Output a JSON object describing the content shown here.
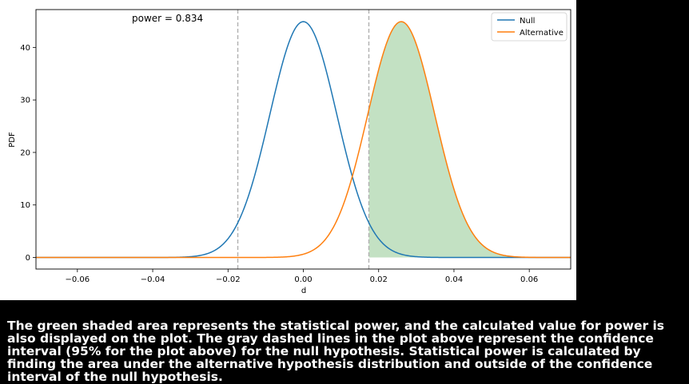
{
  "chart_data": {
    "type": "line",
    "title": "",
    "annotation": "power = 0.834",
    "xlabel": "d",
    "ylabel": "PDF",
    "xlim": [
      -0.071,
      0.071
    ],
    "ylim": [
      -2.2,
      47.2
    ],
    "xticks": [
      -0.06,
      -0.04,
      -0.02,
      0.0,
      0.02,
      0.04,
      0.06
    ],
    "xtick_labels": [
      "−0.06",
      "−0.04",
      "−0.02",
      "0.00",
      "0.02",
      "0.04",
      "0.06"
    ],
    "yticks": [
      0,
      10,
      20,
      30,
      40
    ],
    "ytick_labels": [
      "0",
      "10",
      "20",
      "30",
      "40"
    ],
    "grid": false,
    "legend_position": "top-right",
    "series": [
      {
        "name": "Null",
        "distribution": "normal",
        "mean": 0.0,
        "sd": 0.00889,
        "peak": 44.9,
        "color": "#1f77b4"
      },
      {
        "name": "Alternative",
        "distribution": "normal",
        "mean": 0.026,
        "sd": 0.00889,
        "peak": 44.9,
        "color": "#ff7f0e"
      }
    ],
    "confidence_interval": [
      -0.0174,
      0.0174
    ],
    "ci_line_color": "#b0b0b0",
    "power": 0.834,
    "shaded_region": {
      "from": 0.0174,
      "under": "Alternative",
      "color": "#c3e1c3"
    }
  },
  "caption": "The green shaded area represents the statistical power, and the calculated value for power is also displayed on the plot. The gray dashed lines in the plot above represent the confidence interval (95% for the plot above) for the null hypothesis. Statistical power is calculated by finding the area under the alternative hypothesis distribution and outside of the confidence interval of the null hypothesis."
}
